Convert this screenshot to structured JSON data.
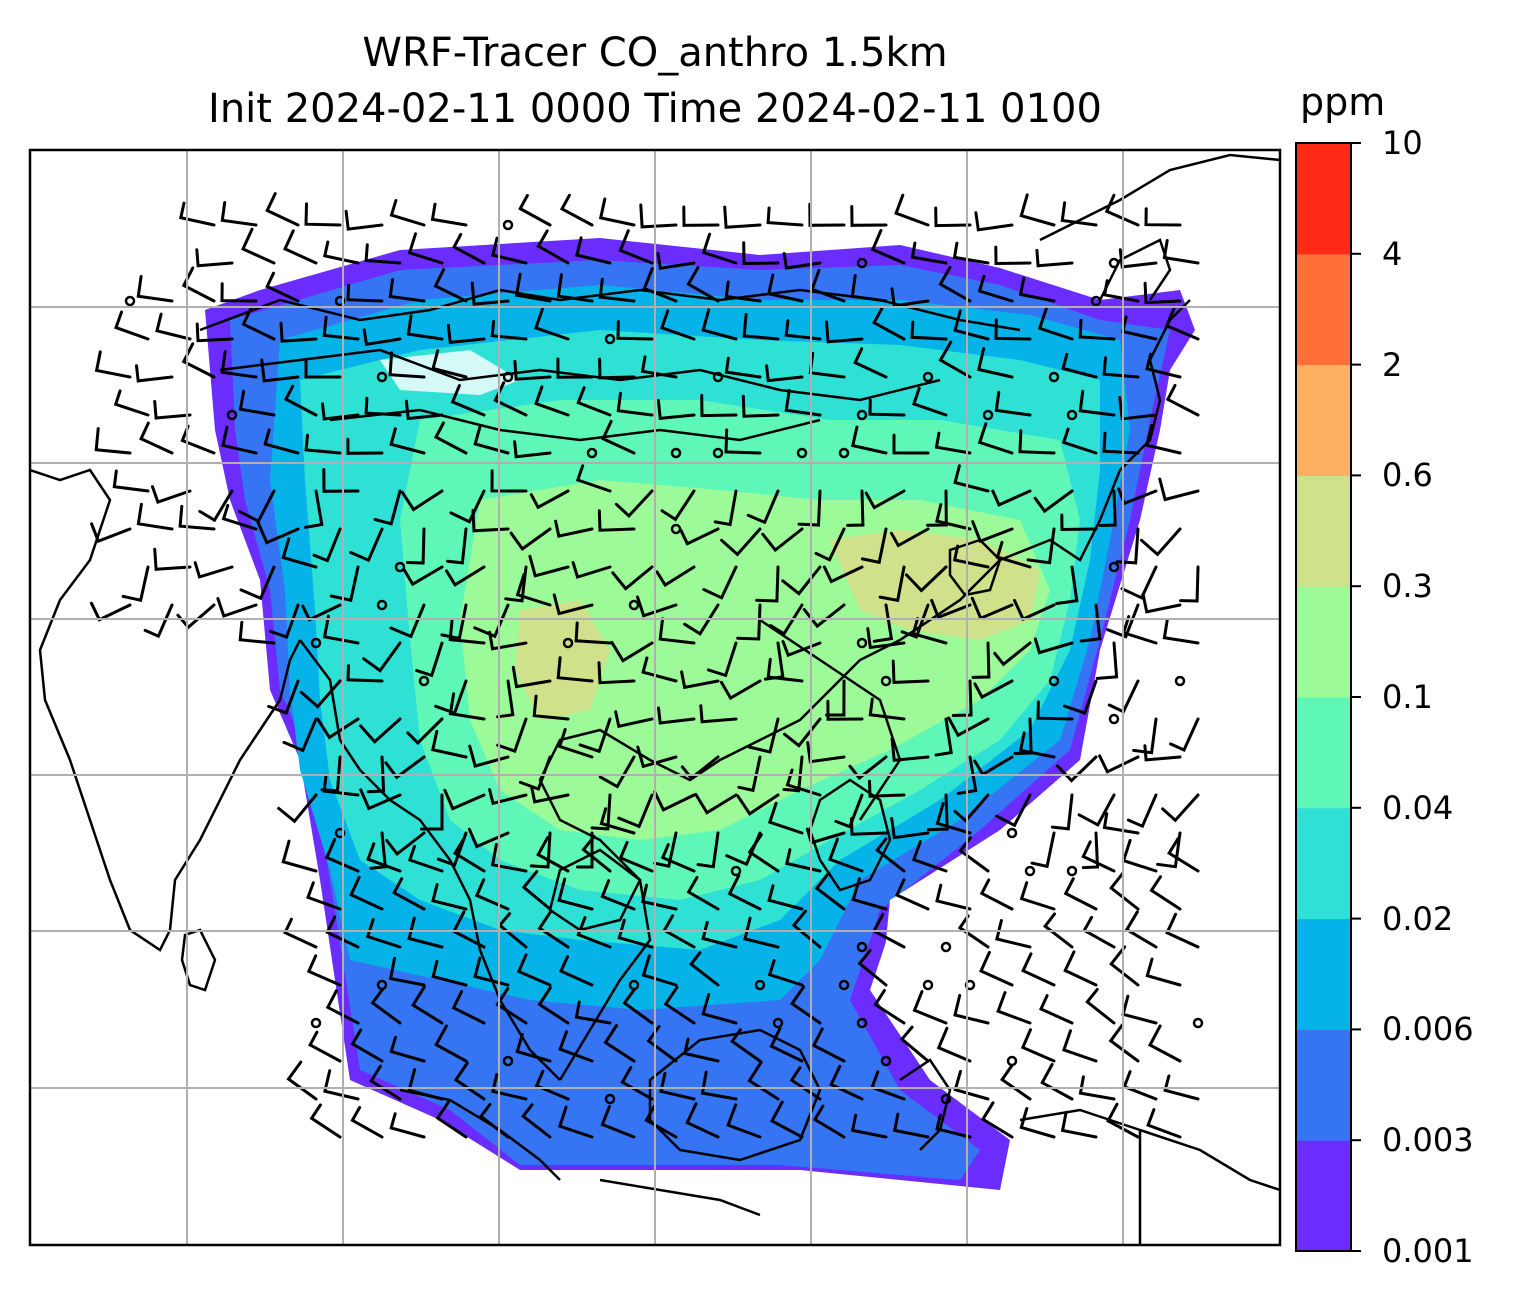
{
  "title_line1": "WRF-Tracer CO_anthro 1.5km",
  "title_line2": "Init 2024-02-11 0000 Time 2024-02-11 0100",
  "colorbar": {
    "unit": "ppm",
    "ticks": [
      "0.001",
      "0.003",
      "0.006",
      "0.02",
      "0.04",
      "0.1",
      "0.3",
      "0.6",
      "2",
      "4",
      "10"
    ],
    "colors": [
      "#6a2dfd",
      "#3575f3",
      "#06b3e9",
      "#2fe0d4",
      "#5ff7b8",
      "#9cfa98",
      "#cfe18a",
      "#fdb062",
      "#ff6f3a",
      "#ff2a16"
    ]
  },
  "map": {
    "grid_color": "#b0b0b0",
    "coastline_color": "#000000",
    "wind_barb_color": "#000000"
  }
}
